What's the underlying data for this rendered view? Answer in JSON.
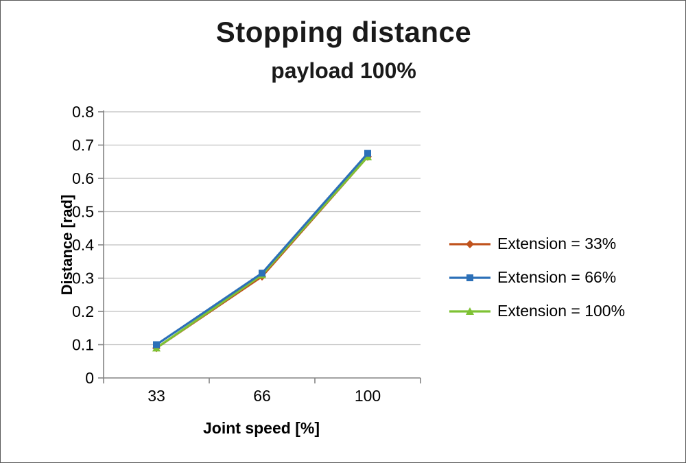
{
  "chart": {
    "title": "Stopping distance",
    "subtitle": "payload 100%",
    "xlabel": "Joint speed [%]",
    "ylabel": "Distance [rad]"
  },
  "chart_data": {
    "type": "line",
    "categories": [
      "33",
      "66",
      "100"
    ],
    "x_values": [
      33,
      66,
      100
    ],
    "series": [
      {
        "name": "Extension = 33%",
        "values": [
          0.09,
          0.305,
          0.665
        ],
        "color": "#C0531D",
        "marker": "diamond"
      },
      {
        "name": "Extension = 66%",
        "values": [
          0.1,
          0.315,
          0.675
        ],
        "color": "#2C70B8",
        "marker": "square"
      },
      {
        "name": "Extension = 100%",
        "values": [
          0.09,
          0.31,
          0.665
        ],
        "color": "#7EC234",
        "marker": "triangle"
      }
    ],
    "ylim": [
      0,
      0.8
    ],
    "ytick_step": 0.1,
    "grid": true,
    "legend_position": "right",
    "colors": {
      "gridline": "#BFBFBF",
      "axis": "#848484",
      "tick_text": "#000000"
    }
  }
}
